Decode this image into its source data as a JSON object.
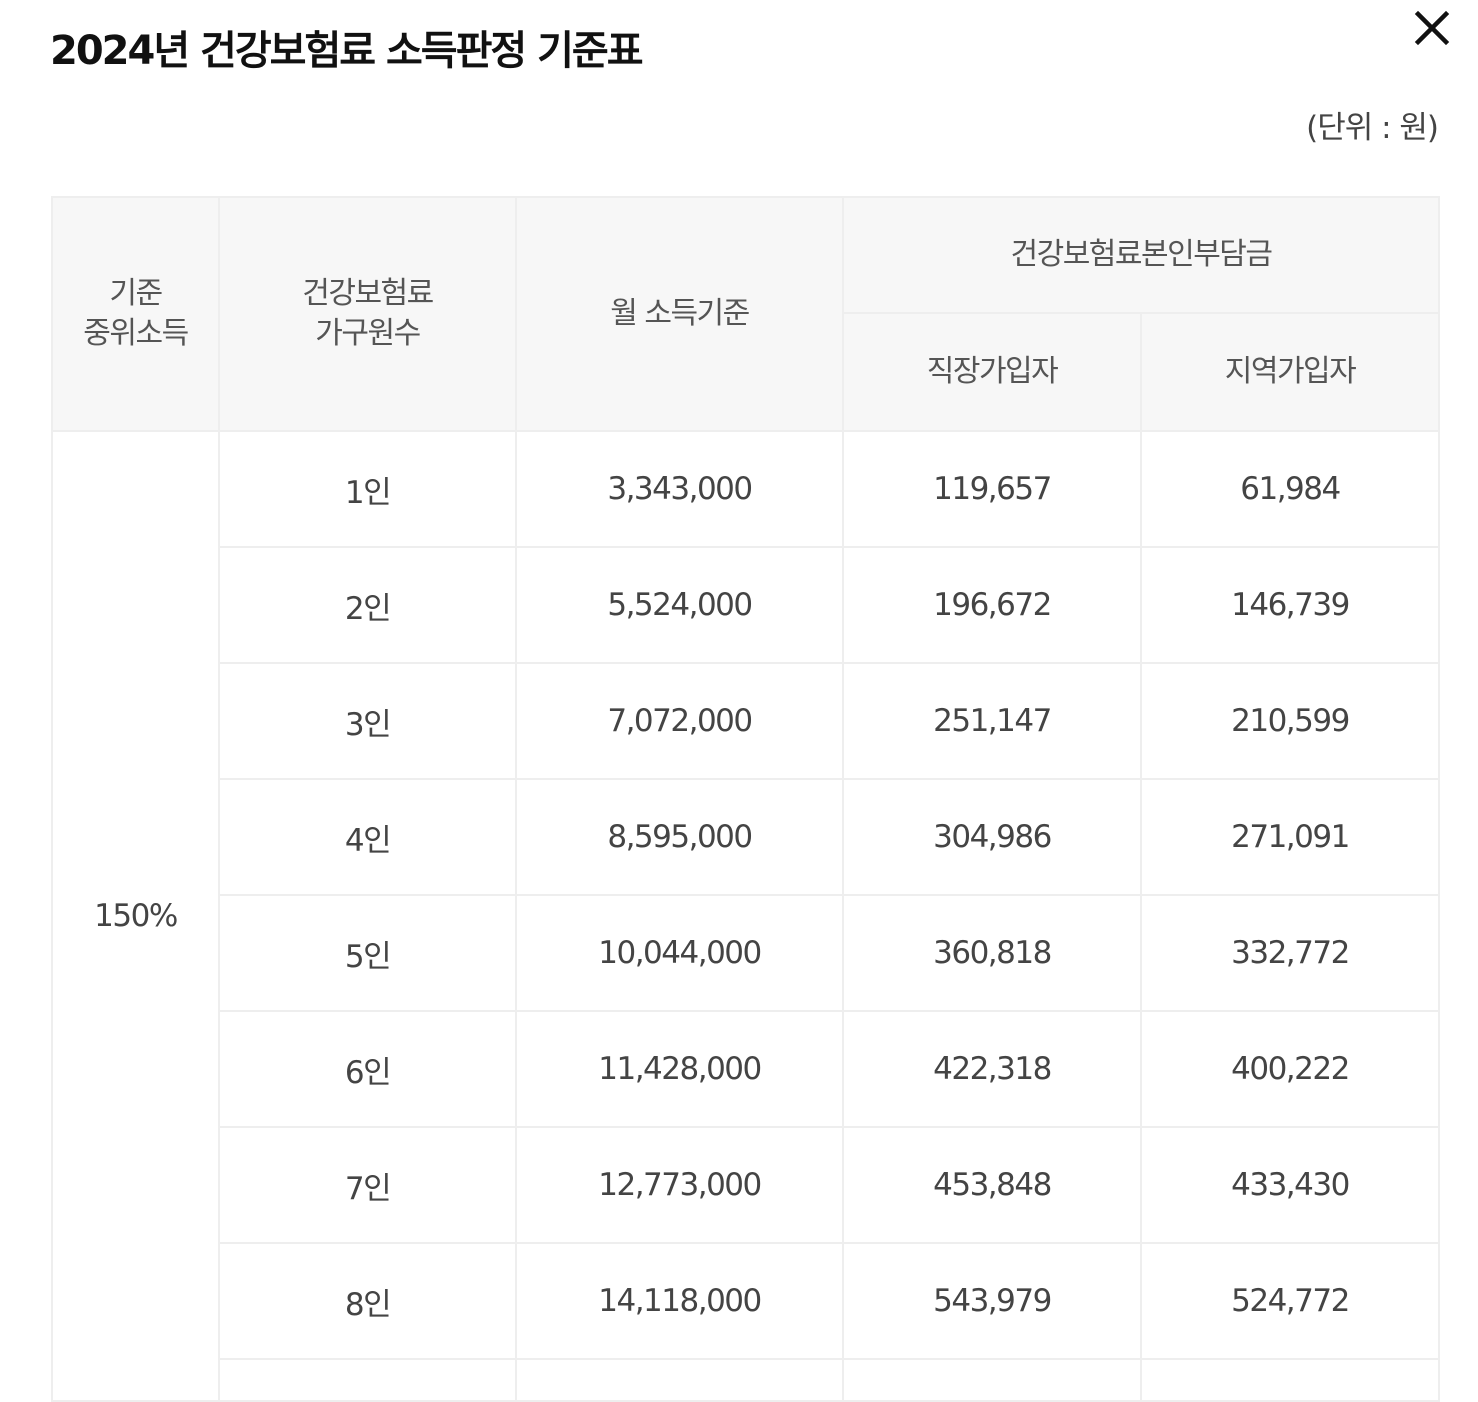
{
  "title": "2024년 건강보험료 소득판정 기준표",
  "close_icon": "close-icon",
  "unit_label": "(단위 : 원)",
  "table": {
    "headers": {
      "median_line1": "기준",
      "median_line2": "중위소득",
      "household_line1": "건강보험료",
      "household_line2": "가구원수",
      "monthly_income": "월 소득기준",
      "premium_group": "건강보험료본인부담금",
      "employee": "직장가입자",
      "regional": "지역가입자"
    },
    "median_value": "150%",
    "rows": [
      {
        "household": "1인",
        "income": "3,343,000",
        "employee": "119,657",
        "regional": "61,984"
      },
      {
        "household": "2인",
        "income": "5,524,000",
        "employee": "196,672",
        "regional": "146,739"
      },
      {
        "household": "3인",
        "income": "7,072,000",
        "employee": "251,147",
        "regional": "210,599"
      },
      {
        "household": "4인",
        "income": "8,595,000",
        "employee": "304,986",
        "regional": "271,091"
      },
      {
        "household": "5인",
        "income": "10,044,000",
        "employee": "360,818",
        "regional": "332,772"
      },
      {
        "household": "6인",
        "income": "11,428,000",
        "employee": "422,318",
        "regional": "400,222"
      },
      {
        "household": "7인",
        "income": "12,773,000",
        "employee": "453,848",
        "regional": "433,430"
      },
      {
        "household": "8인",
        "income": "14,118,000",
        "employee": "543,979",
        "regional": "524,772"
      }
    ]
  }
}
